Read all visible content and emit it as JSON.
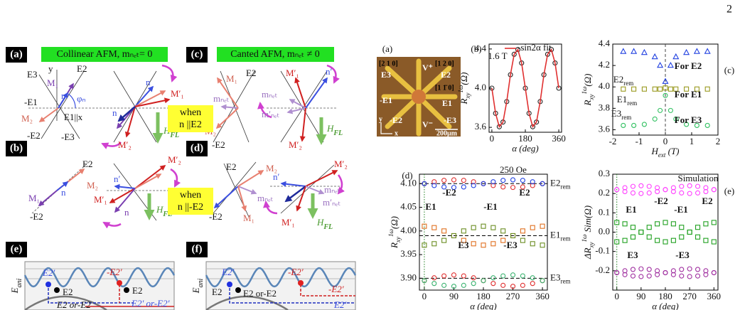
{
  "figure": {
    "page_number": "2",
    "a": {
      "label": "(a)",
      "banner": "Collinear AFM, mₙₑₜ= 0",
      "texts": [
        "E3",
        "y",
        "E2",
        "-E1",
        "n",
        "φₙ",
        "M₁",
        "M₂",
        "E1||x",
        "-E2",
        "-E3",
        "n",
        "n",
        "M′₁",
        "M′₂"
      ],
      "hfl": {
        "main": "H",
        "sub": "FL"
      }
    },
    "b": {
      "label": "(b)",
      "texts": [
        "E2",
        "M₂",
        "n",
        "M₁",
        "-E2",
        "n′",
        "M′₂",
        "M′₁",
        "n"
      ],
      "hfl": {
        "main": "H",
        "sub": "FL"
      }
    },
    "c": {
      "label": "(c)",
      "banner": "Canted AFM, mₙₑₜ ≠ 0",
      "texts": [
        "M₁",
        "E2",
        "mₙₑₜ",
        "M₂",
        "-E2",
        "M′₁",
        "n′",
        "mₙₑₜ",
        "m′ₙₑₜ",
        "M′₂"
      ],
      "hfl": {
        "main": "H",
        "sub": "FL"
      }
    },
    "d": {
      "label": "(d)",
      "texts": [
        "E2",
        "M₂",
        "mₙₑₜ",
        "-E2",
        "M₁",
        "M′₂",
        "n′",
        "mₙₑₜ",
        "m′ₙₑₜ",
        "M′₁"
      ],
      "hfl": {
        "main": "H",
        "sub": "FL"
      }
    },
    "when_e2": [
      "when",
      "n ||E2"
    ],
    "when_me2": [
      "when",
      "n ||-E2"
    ],
    "e": {
      "label": "(e)",
      "yaxis": {
        "main": "E",
        "sub": "ani"
      },
      "texts": [
        "E2′",
        "-E2′",
        "E2",
        "E2",
        "E2 or-E2",
        "E2′ or-E2′"
      ]
    },
    "f": {
      "label": "(f)",
      "yaxis": {
        "main": "E",
        "sub": "ani"
      },
      "texts": [
        "E2′",
        "-E2′",
        "E2",
        "E2 or-E2",
        "-E2′",
        "E2′"
      ]
    },
    "photo": {
      "label": "(a)",
      "texts": [
        "[2 1 0]",
        "[1 2 0]",
        "[1 1̄ 0]",
        "E3",
        "E2",
        "-E1",
        "E1",
        "-E2",
        "-E3",
        "V⁺",
        "V⁻",
        "200μm",
        "x",
        "y"
      ]
    }
  },
  "chart_data": [
    {
      "type": "scatter",
      "panel_label": "(b)",
      "xlabel": "α (deg)",
      "ylabel": {
        "main": "R",
        "sub": "xy",
        "sup": "1ω",
        "unit": "(Ω)"
      },
      "x": [
        0,
        20,
        40,
        60,
        80,
        100,
        120,
        140,
        160,
        180,
        200,
        220,
        240,
        260,
        280,
        300,
        320,
        340,
        360
      ],
      "series": [
        {
          "color": "#222222",
          "marker": "circle-open",
          "values": [
            4.0,
            3.743,
            3.606,
            3.654,
            3.863,
            4.137,
            4.346,
            4.394,
            4.257,
            4.0,
            3.743,
            3.606,
            3.654,
            3.863,
            4.137,
            4.346,
            4.394,
            4.257,
            4.0
          ]
        },
        {
          "name": "-sin2α fit",
          "color": "#e03030",
          "marker": "line",
          "values": [
            4.0,
            3.743,
            3.606,
            3.654,
            3.863,
            4.137,
            4.346,
            4.394,
            4.257,
            4.0,
            3.743,
            3.606,
            3.654,
            3.863,
            4.137,
            4.346,
            4.394,
            4.257,
            4.0
          ]
        }
      ],
      "xlim": [
        -15,
        375
      ],
      "ylim": [
        3.55,
        4.45
      ],
      "xticks": [
        0,
        180,
        360
      ],
      "yticks": [
        3.6,
        {
          "value": 4,
          "label": "4.0"
        },
        4.4
      ],
      "legend": "upper right",
      "annotations": [
        {
          "text": "1.6 T",
          "color": "#000000"
        }
      ]
    },
    {
      "type": "scatter",
      "panel_label": "(c)",
      "xlabel": {
        "main": "H",
        "sub": "ext",
        "unit": " (T)"
      },
      "ylabel": {
        "main": "R",
        "sub": "xy",
        "sup": "1ω",
        "unit": "(Ω)"
      },
      "x": [
        -1.6,
        -1.2,
        -0.8,
        -0.4,
        -0.2,
        0,
        0.2,
        0.4,
        0.8,
        1.2,
        1.6
      ],
      "series": [
        {
          "name": "For E2",
          "color": "#2040e0",
          "marker": "triangle-open",
          "values": [
            4.33,
            4.33,
            4.32,
            4.28,
            4.2,
            4.05,
            4.2,
            4.28,
            4.32,
            4.33,
            4.33
          ]
        },
        {
          "name": "For E1",
          "color": "#9a9a20",
          "marker": "square-open",
          "values": [
            3.98,
            3.98,
            3.98,
            3.98,
            3.98,
            3.99,
            3.98,
            3.98,
            3.98,
            3.98,
            3.98
          ]
        },
        {
          "name": "For E3",
          "color": "#30c060",
          "marker": "circle-open",
          "values": [
            3.64,
            3.64,
            3.65,
            3.7,
            3.78,
            3.92,
            3.78,
            3.7,
            3.65,
            3.64,
            3.64
          ]
        }
      ],
      "xlim": [
        -2,
        2
      ],
      "ylim": [
        3.55,
        4.4
      ],
      "xticks": [
        -2,
        -1,
        0,
        1,
        2
      ],
      "yticks": [
        3.6,
        3.8,
        {
          "value": 4,
          "label": "4.0"
        },
        4.2,
        4.4
      ],
      "x_marker": 0,
      "annotations": [
        {
          "main": "E2",
          "sub": "rem",
          "color": "#000000"
        },
        {
          "main": "E1",
          "sub": "rem",
          "color": "#000000"
        },
        {
          "main": "E3",
          "sub": "rem",
          "color": "#000000"
        }
      ]
    },
    {
      "type": "scatter",
      "panel_label": "(d)",
      "xlabel": "α (deg)",
      "ylabel": {
        "main": "R",
        "sub": "xy",
        "sup": "1ω",
        "unit": "(Ω)"
      },
      "x": [
        0,
        30,
        60,
        90,
        120,
        150,
        180,
        210,
        240,
        270,
        300,
        330,
        360
      ],
      "series": [
        {
          "color": "#e03030",
          "marker": "circle-open",
          "values": [
            4.1,
            4.104,
            4.107,
            4.108,
            4.107,
            4.104,
            4.1,
            4.096,
            4.093,
            4.092,
            4.093,
            4.096,
            4.1
          ]
        },
        {
          "color": "#2040e0",
          "marker": "circle-open",
          "values": [
            4.1,
            4.096,
            4.093,
            4.092,
            4.093,
            4.096,
            4.1,
            4.104,
            4.107,
            4.108,
            4.107,
            4.104,
            4.1
          ]
        },
        {
          "color": "#e07020",
          "marker": "square-open",
          "values": [
            4.01,
            4.007,
            4.0,
            3.99,
            3.98,
            3.973,
            3.97,
            3.973,
            3.98,
            3.99,
            4.0,
            4.007,
            4.01
          ]
        },
        {
          "color": "#6b8e23",
          "marker": "square-open",
          "values": [
            3.97,
            3.973,
            3.98,
            3.99,
            4.0,
            4.007,
            4.01,
            4.007,
            4.0,
            3.99,
            3.98,
            3.973,
            3.97
          ]
        },
        {
          "color": "#e03030",
          "marker": "circle-open",
          "values": [
            3.895,
            3.901,
            3.905,
            3.907,
            3.905,
            3.901,
            3.895,
            3.889,
            3.885,
            3.883,
            3.885,
            3.889,
            3.895
          ]
        },
        {
          "color": "#3cb371",
          "marker": "circle-open",
          "values": [
            3.895,
            3.889,
            3.885,
            3.883,
            3.885,
            3.889,
            3.895,
            3.901,
            3.905,
            3.907,
            3.905,
            3.901,
            3.895
          ]
        }
      ],
      "xlim": [
        -15,
        375
      ],
      "ylim": [
        3.875,
        4.12
      ],
      "xticks": [
        0,
        90,
        180,
        270,
        360
      ],
      "yticks": [
        {
          "value": 3.9,
          "label": "3.90"
        },
        3.95,
        {
          "value": 4,
          "label": "4.00"
        },
        4.05,
        {
          "value": 4.1,
          "label": "4.10"
        }
      ],
      "x_marker": 0,
      "reference_lines": [
        {
          "value": 4.1,
          "label": {
            "main": "E2",
            "sub": "rem"
          }
        },
        {
          "value": 3.99,
          "label": {
            "main": "E1",
            "sub": "rem"
          }
        },
        {
          "value": 3.9,
          "label": {
            "main": "E3",
            "sub": "rem"
          }
        }
      ],
      "annotations": [
        {
          "text": "250 Oe",
          "color": "#000000"
        },
        {
          "text": "-E2",
          "color": "#2040e0"
        },
        {
          "text": "E2",
          "color": "#2040e0"
        },
        {
          "text": "E1",
          "color": "#7a7a10"
        },
        {
          "text": "-E1",
          "color": "#7a7a10"
        },
        {
          "text": "E3",
          "color": "#30b060"
        },
        {
          "text": "-E3",
          "color": "#30b060"
        }
      ]
    },
    {
      "type": "scatter",
      "panel_label": "(e)",
      "xlabel": "α (deg)",
      "ylabel": {
        "main": "ΔR",
        "sub": "xy",
        "sup": "1ω",
        "unit": " Sim(Ω)"
      },
      "x": [
        0,
        30,
        60,
        90,
        120,
        150,
        180,
        210,
        240,
        270,
        300,
        330,
        360
      ],
      "series": [
        {
          "color": "#ff40ff",
          "marker": "circle-open",
          "values": [
            0.22,
            0.23,
            0.237,
            0.24,
            0.237,
            0.23,
            0.22,
            0.21,
            0.203,
            0.2,
            0.203,
            0.21,
            0.22
          ]
        },
        {
          "color": "#ff40ff",
          "marker": "circle-open",
          "values": [
            0.22,
            0.21,
            0.203,
            0.2,
            0.203,
            0.21,
            0.22,
            0.23,
            0.237,
            0.24,
            0.237,
            0.23,
            0.22
          ]
        },
        {
          "color": "#20a020",
          "marker": "square-open",
          "values": [
            0.05,
            0.043,
            0.025,
            0,
            -0.025,
            -0.043,
            -0.05,
            -0.043,
            -0.025,
            0,
            0.025,
            0.043,
            0.05
          ]
        },
        {
          "color": "#20a020",
          "marker": "square-open",
          "values": [
            -0.05,
            -0.043,
            -0.025,
            0,
            0.025,
            0.043,
            0.05,
            0.043,
            0.025,
            0,
            -0.025,
            -0.043,
            -0.05
          ]
        },
        {
          "color": "#a030a0",
          "marker": "circle-open",
          "values": [
            -0.21,
            -0.2,
            -0.193,
            -0.19,
            -0.193,
            -0.2,
            -0.21,
            -0.22,
            -0.227,
            -0.23,
            -0.227,
            -0.22,
            -0.21
          ]
        },
        {
          "color": "#a030a0",
          "marker": "circle-open",
          "values": [
            -0.21,
            -0.22,
            -0.227,
            -0.23,
            -0.227,
            -0.22,
            -0.21,
            -0.2,
            -0.193,
            -0.19,
            -0.193,
            -0.2,
            -0.21
          ]
        }
      ],
      "xlim": [
        -15,
        375
      ],
      "ylim": [
        -0.3,
        0.3
      ],
      "xticks": [
        0,
        90,
        180,
        270,
        360
      ],
      "yticks": [
        -0.2,
        -0.1,
        {
          "value": 0,
          "label": "0.0"
        },
        0.1,
        0.2,
        0.3
      ],
      "x_marker": 0,
      "annotations": [
        {
          "text": "Simulation",
          "color": "#000000"
        },
        {
          "text": "-E2",
          "color": "#d020d0"
        },
        {
          "text": "E2",
          "color": "#d020d0"
        },
        {
          "text": "E1",
          "color": "#1a8a1a"
        },
        {
          "text": "-E1",
          "color": "#1a8a1a"
        },
        {
          "text": "E3",
          "color": "#902090"
        },
        {
          "text": "-E3",
          "color": "#902090"
        }
      ]
    }
  ]
}
